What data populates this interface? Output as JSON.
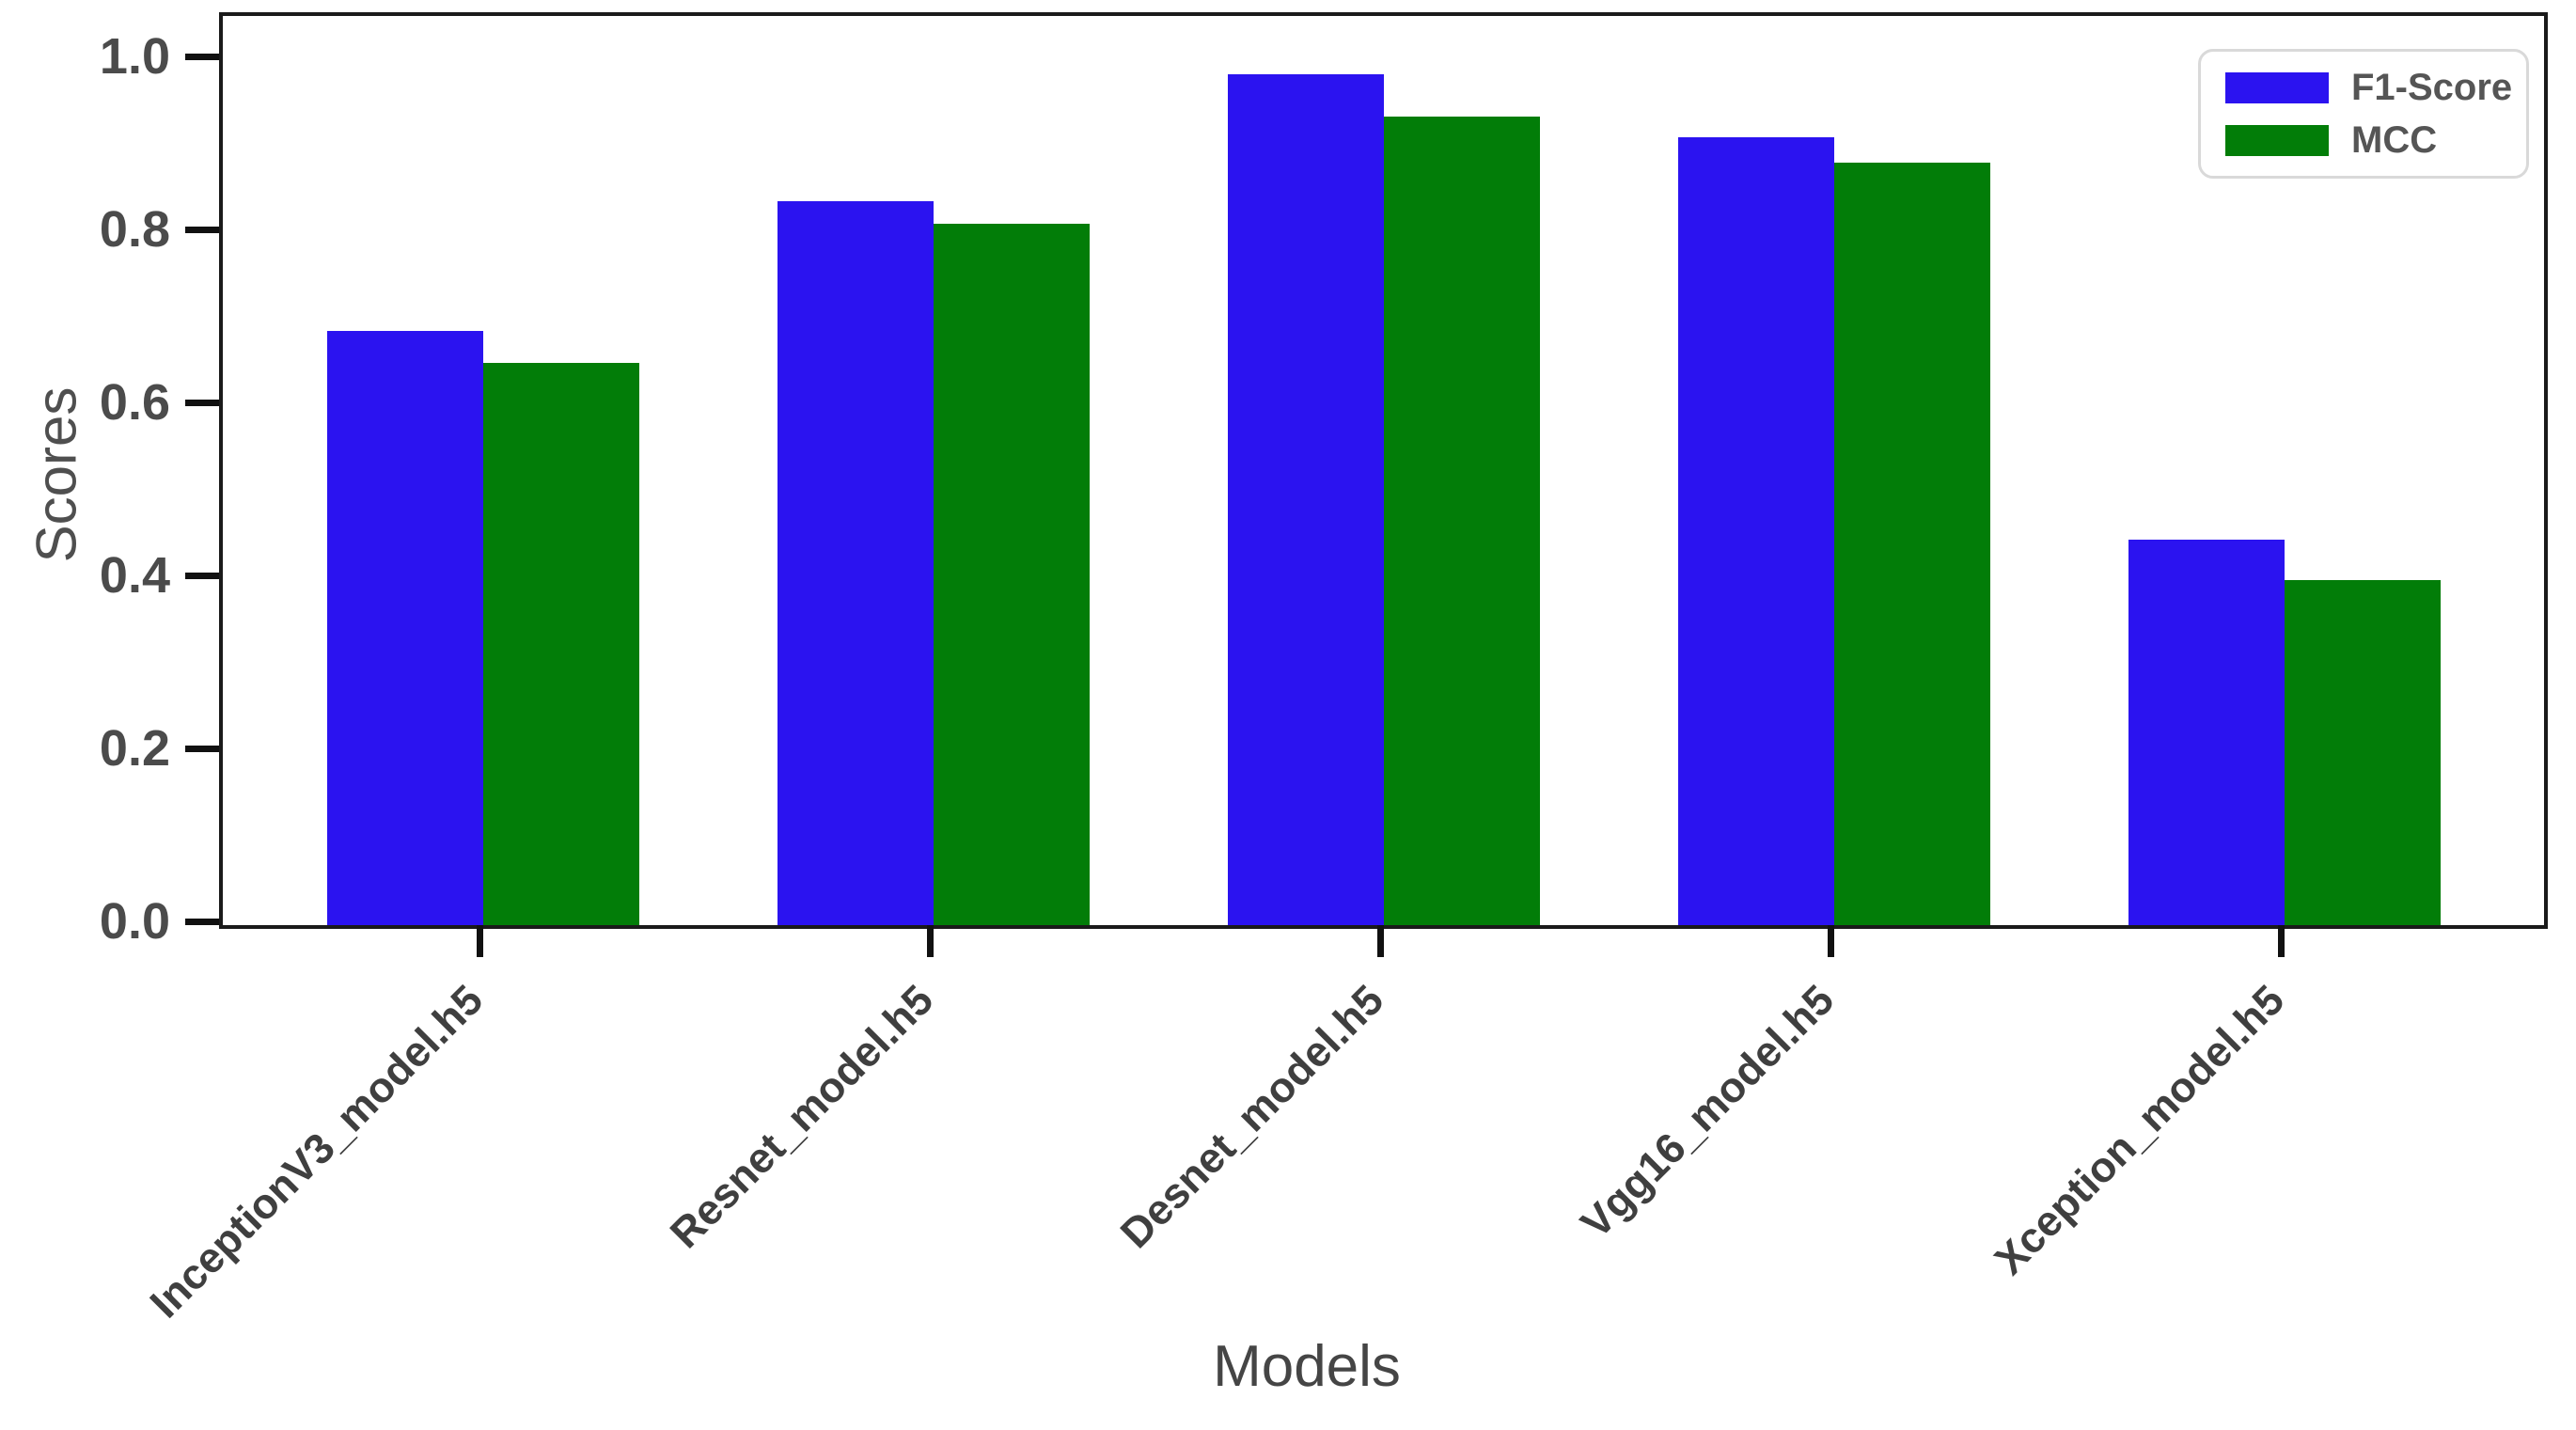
{
  "chart_data": {
    "type": "bar",
    "title": "",
    "xlabel": "Models",
    "ylabel": "Scores",
    "categories": [
      "InceptionV3_model.h5",
      "Resnet_model.h5",
      "Desnet_model.h5",
      "Vgg16_model.h5",
      "Xception_model.h5"
    ],
    "series": [
      {
        "name": "F1-Score",
        "color": "#2b13f0",
        "values": [
          0.687,
          0.837,
          0.984,
          0.911,
          0.446
        ]
      },
      {
        "name": "MCC",
        "color": "#027d08",
        "values": [
          0.65,
          0.811,
          0.935,
          0.882,
          0.399
        ]
      }
    ],
    "ylim": [
      0.0,
      1.05
    ],
    "yticks": [
      0.0,
      0.2,
      0.4,
      0.6,
      0.8,
      1.0
    ],
    "ytick_labels": [
      "0.0",
      "0.2",
      "0.4",
      "0.6",
      "0.8",
      "1.0"
    ],
    "legend_position": "upper right",
    "grid": false,
    "colors": {
      "spine": "#1a1a1a",
      "tick_label_text": "#4b4b4b",
      "axis_title_text": "#4f4f4f",
      "legend_text": "#555555",
      "legend_border": "#d9d9d9",
      "background": "#ffffff"
    }
  }
}
